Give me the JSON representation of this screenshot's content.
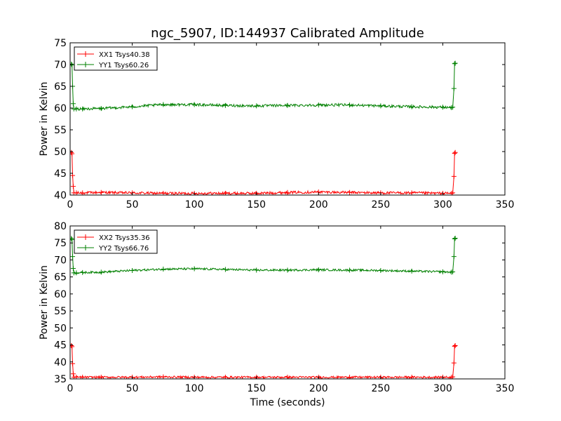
{
  "chart_data": [
    {
      "type": "line",
      "title": "ngc_5907, ID:144937 Calibrated Amplitude",
      "xlabel": "",
      "ylabel": "Power in Kelvin",
      "xlim": [
        0,
        350
      ],
      "ylim": [
        40,
        75
      ],
      "xticks": [
        0,
        50,
        100,
        150,
        200,
        250,
        300,
        350
      ],
      "yticks": [
        40,
        45,
        50,
        55,
        60,
        65,
        70,
        75
      ],
      "legend": "top-left",
      "grid": false,
      "series": [
        {
          "name": "XX1 Tsys40.38",
          "color": "#ff0000",
          "x": [
            1,
            1.5,
            2,
            2.5,
            3,
            5,
            10,
            25,
            50,
            75,
            100,
            125,
            150,
            175,
            200,
            225,
            250,
            275,
            300,
            307,
            308,
            309,
            309.5,
            310
          ],
          "y": [
            49.8,
            49.5,
            44.5,
            42.0,
            40.5,
            40.5,
            40.5,
            40.6,
            40.5,
            40.4,
            40.4,
            40.4,
            40.4,
            40.6,
            40.7,
            40.6,
            40.5,
            40.5,
            40.4,
            40.4,
            40.5,
            44.3,
            49.6,
            49.8
          ]
        },
        {
          "name": "YY1 Tsys60.26",
          "color": "#008000",
          "x": [
            1,
            1.5,
            2,
            2.5,
            3,
            5,
            10,
            25,
            50,
            75,
            100,
            125,
            150,
            175,
            200,
            225,
            250,
            275,
            300,
            307,
            308,
            309,
            309.5,
            310
          ],
          "y": [
            70.1,
            69.9,
            65.0,
            61.0,
            59.8,
            59.8,
            59.8,
            59.9,
            60.3,
            60.8,
            60.8,
            60.6,
            60.5,
            60.6,
            60.7,
            60.7,
            60.5,
            60.3,
            60.2,
            60.1,
            60.2,
            64.5,
            70.2,
            70.3
          ]
        }
      ]
    },
    {
      "type": "line",
      "title": "",
      "xlabel": "Time (seconds)",
      "ylabel": "Power in Kelvin",
      "xlim": [
        0,
        350
      ],
      "ylim": [
        35,
        80
      ],
      "xticks": [
        0,
        50,
        100,
        150,
        200,
        250,
        300,
        350
      ],
      "yticks": [
        35,
        40,
        45,
        50,
        55,
        60,
        65,
        70,
        75,
        80
      ],
      "legend": "top-left",
      "grid": false,
      "series": [
        {
          "name": "XX2 Tsys35.36",
          "color": "#ff0000",
          "x": [
            1,
            1.5,
            2,
            2.5,
            3,
            5,
            10,
            25,
            50,
            75,
            100,
            125,
            150,
            175,
            200,
            225,
            250,
            275,
            300,
            307,
            308,
            309,
            309.5,
            310
          ],
          "y": [
            44.8,
            44.5,
            39.5,
            36.5,
            35.5,
            35.5,
            35.5,
            35.5,
            35.5,
            35.6,
            35.5,
            35.5,
            35.5,
            35.5,
            35.5,
            35.5,
            35.5,
            35.5,
            35.5,
            35.5,
            35.6,
            39.7,
            44.6,
            44.8
          ]
        },
        {
          "name": "YY2 Tsys66.76",
          "color": "#008000",
          "x": [
            1,
            1.5,
            2,
            2.5,
            3,
            5,
            10,
            25,
            50,
            75,
            100,
            125,
            150,
            175,
            200,
            225,
            250,
            275,
            300,
            307,
            308,
            309,
            309.5,
            310
          ],
          "y": [
            76.3,
            76.0,
            71.0,
            67.5,
            66.2,
            66.2,
            66.3,
            66.4,
            66.9,
            67.3,
            67.4,
            67.2,
            67.0,
            67.0,
            67.1,
            67.0,
            66.9,
            66.7,
            66.5,
            66.4,
            66.5,
            71.0,
            76.2,
            76.4
          ]
        }
      ]
    }
  ]
}
